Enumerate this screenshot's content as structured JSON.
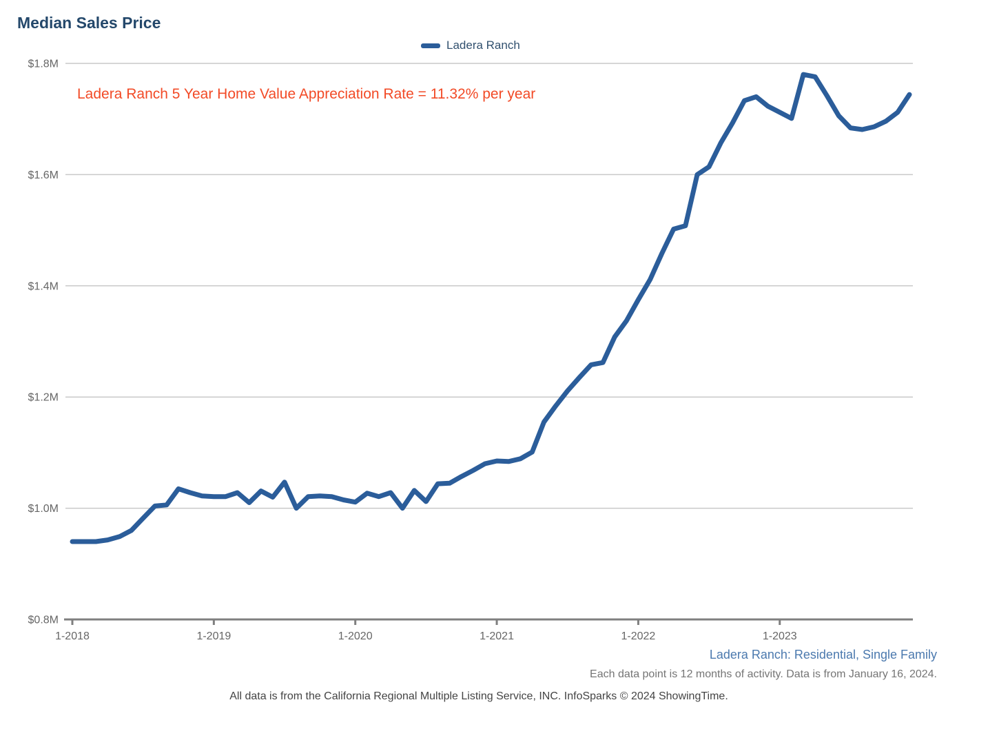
{
  "title": "Median Sales Price",
  "legend": {
    "label": "Ladera Ranch"
  },
  "annotation": {
    "text": "Ladera Ranch 5 Year Home Value Appreciation Rate = 11.32% per year"
  },
  "footer": {
    "series_note": "Ladera Ranch: Residential, Single Family",
    "activity_note": "Each data point is 12 months of activity. Data is from January 16, 2024.",
    "source_note": "All data is from the California Regional Multiple Listing Service, INC. InfoSparks © 2024 ShowingTime."
  },
  "colors": {
    "series_line": "#2b5d9a",
    "title": "#24486b",
    "legend_text": "#31506e",
    "annotation": "#f24a26",
    "axis_label": "#666666",
    "gridline": "#c9c9c9",
    "axis_line": "#7f7f7f",
    "footer_blue": "#4b79ae",
    "footer_gray": "#757575",
    "footer_dark": "#444444"
  },
  "chart_data": {
    "type": "line",
    "title": "Median Sales Price",
    "legend_position": "top",
    "grid": true,
    "ylim": [
      0.8,
      1.8
    ],
    "y_ticks": [
      0.8,
      1.0,
      1.2,
      1.4,
      1.6,
      1.8
    ],
    "y_tick_labels": [
      "$0.8M",
      "$1.0M",
      "$1.2M",
      "$1.4M",
      "$1.6M",
      "$1.8M"
    ],
    "x_ticks": [
      {
        "index": 0,
        "label": "1-2018"
      },
      {
        "index": 12,
        "label": "1-2019"
      },
      {
        "index": 24,
        "label": "1-2020"
      },
      {
        "index": 36,
        "label": "1-2021"
      },
      {
        "index": 48,
        "label": "1-2022"
      },
      {
        "index": 60,
        "label": "1-2023"
      }
    ],
    "months": [
      "1-2018",
      "2-2018",
      "3-2018",
      "4-2018",
      "5-2018",
      "6-2018",
      "7-2018",
      "8-2018",
      "9-2018",
      "10-2018",
      "11-2018",
      "12-2018",
      "1-2019",
      "2-2019",
      "3-2019",
      "4-2019",
      "5-2019",
      "6-2019",
      "7-2019",
      "8-2019",
      "9-2019",
      "10-2019",
      "11-2019",
      "12-2019",
      "1-2020",
      "2-2020",
      "3-2020",
      "4-2020",
      "5-2020",
      "6-2020",
      "7-2020",
      "8-2020",
      "9-2020",
      "10-2020",
      "11-2020",
      "12-2020",
      "1-2021",
      "2-2021",
      "3-2021",
      "4-2021",
      "5-2021",
      "6-2021",
      "7-2021",
      "8-2021",
      "9-2021",
      "10-2021",
      "11-2021",
      "12-2021",
      "1-2022",
      "2-2022",
      "3-2022",
      "4-2022",
      "5-2022",
      "6-2022",
      "7-2022",
      "8-2022",
      "9-2022",
      "10-2022",
      "11-2022",
      "12-2022",
      "1-2023",
      "2-2023",
      "3-2023",
      "4-2023",
      "5-2023",
      "6-2023",
      "7-2023",
      "8-2023",
      "9-2023",
      "10-2023",
      "11-2023",
      "12-2023"
    ],
    "series": [
      {
        "name": "Ladera Ranch",
        "unit": "millions_usd",
        "values": [
          0.94,
          0.94,
          0.94,
          0.943,
          0.949,
          0.96,
          0.982,
          1.004,
          1.006,
          1.035,
          1.028,
          1.022,
          1.021,
          1.021,
          1.028,
          1.01,
          1.031,
          1.02,
          1.047,
          1.0,
          1.021,
          1.022,
          1.021,
          1.015,
          1.011,
          1.027,
          1.021,
          1.028,
          1.0,
          1.032,
          1.012,
          1.044,
          1.045,
          1.057,
          1.068,
          1.08,
          1.085,
          1.084,
          1.089,
          1.101,
          1.155,
          1.184,
          1.211,
          1.235,
          1.258,
          1.262,
          1.308,
          1.337,
          1.375,
          1.411,
          1.458,
          1.502,
          1.508,
          1.6,
          1.614,
          1.657,
          1.693,
          1.733,
          1.74,
          1.723,
          1.712,
          1.701,
          1.78,
          1.776,
          1.742,
          1.706,
          1.684,
          1.681,
          1.686,
          1.696,
          1.712,
          1.744
        ]
      }
    ]
  }
}
